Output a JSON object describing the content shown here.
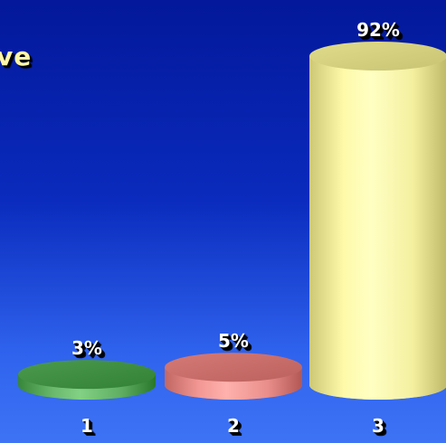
{
  "chart_data": {
    "type": "bar",
    "style": "3d-cylinder",
    "title_fragment": "ve",
    "categories": [
      "1",
      "2",
      "3"
    ],
    "values": [
      3,
      5,
      92
    ],
    "value_labels": [
      "3%",
      "5%",
      "92%"
    ],
    "ylim": [
      0,
      100
    ],
    "grid": false,
    "colors": {
      "background_top": "#03189a",
      "background_bottom": "#3e73f5",
      "bar_1": "#5fae62",
      "bar_2": "#e98e8a",
      "bar_3": "#f4f0a0",
      "title_text": "#fff6a8",
      "label_text": "#ffffff"
    }
  }
}
